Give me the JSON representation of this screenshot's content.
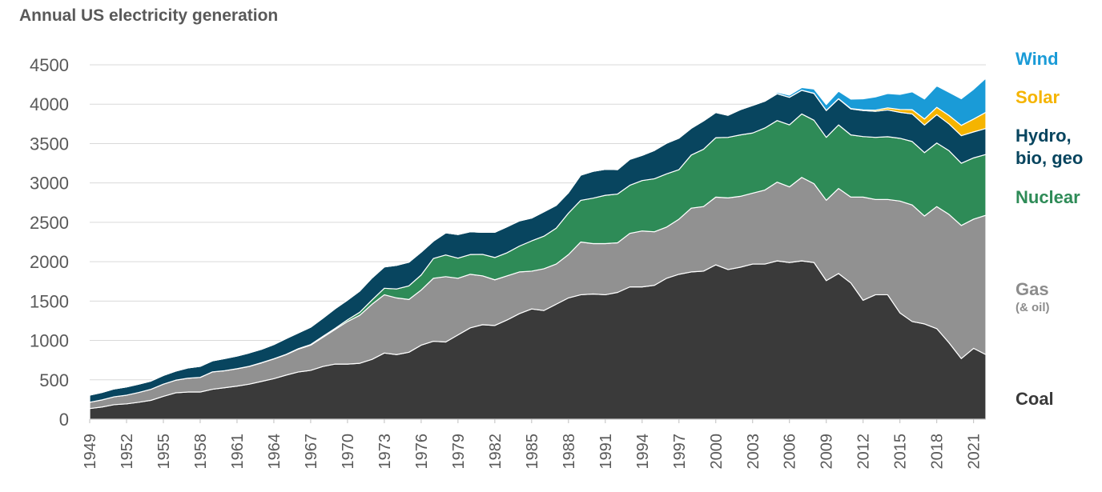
{
  "chart_data": {
    "type": "area",
    "stacked": true,
    "title": "Annual US electricity generation",
    "xlabel": "",
    "ylabel": "",
    "ylim": [
      0,
      4500
    ],
    "yticks": [
      0,
      500,
      1000,
      1500,
      2000,
      2500,
      3000,
      3500,
      4000,
      4500
    ],
    "xticks": [
      "1949",
      "1952",
      "1955",
      "1958",
      "1961",
      "1964",
      "1967",
      "1970",
      "1973",
      "1976",
      "1979",
      "1982",
      "1985",
      "1988",
      "1991",
      "1994",
      "1997",
      "2000",
      "2003",
      "2006",
      "2009",
      "2012",
      "2015",
      "2018",
      "2021"
    ],
    "grid": true,
    "legend_placement": "right",
    "x": [
      1949,
      1950,
      1951,
      1952,
      1953,
      1954,
      1955,
      1956,
      1957,
      1958,
      1959,
      1960,
      1961,
      1962,
      1963,
      1964,
      1965,
      1966,
      1967,
      1968,
      1969,
      1970,
      1971,
      1972,
      1973,
      1974,
      1975,
      1976,
      1977,
      1978,
      1979,
      1980,
      1981,
      1982,
      1983,
      1984,
      1985,
      1986,
      1987,
      1988,
      1989,
      1990,
      1991,
      1992,
      1993,
      1994,
      1995,
      1996,
      1997,
      1998,
      1999,
      2000,
      2001,
      2002,
      2003,
      2004,
      2005,
      2006,
      2007,
      2008,
      2009,
      2010,
      2011,
      2012,
      2013,
      2014,
      2015,
      2016,
      2017,
      2018,
      2019,
      2020,
      2021,
      2022
    ],
    "series": [
      {
        "key": "coal",
        "name": "Coal",
        "sub": "",
        "color": "#3a3a3a",
        "values": [
          135,
          155,
          185,
          195,
          215,
          240,
          290,
          335,
          345,
          345,
          380,
          400,
          420,
          445,
          480,
          515,
          560,
          600,
          620,
          670,
          700,
          700,
          710,
          760,
          840,
          820,
          850,
          940,
          990,
          980,
          1070,
          1160,
          1200,
          1190,
          1260,
          1340,
          1400,
          1380,
          1460,
          1540,
          1580,
          1590,
          1580,
          1610,
          1680,
          1680,
          1700,
          1790,
          1840,
          1870,
          1880,
          1960,
          1900,
          1930,
          1970,
          1970,
          2010,
          1990,
          2010,
          1990,
          1760,
          1850,
          1730,
          1510,
          1580,
          1580,
          1350,
          1240,
          1210,
          1150,
          970,
          770,
          900,
          820
        ]
      },
      {
        "key": "gas",
        "name": "Gas",
        "sub": "(& oil)",
        "color": "#919191",
        "values": [
          80,
          90,
          100,
          110,
          125,
          140,
          155,
          160,
          175,
          185,
          220,
          215,
          220,
          225,
          235,
          250,
          260,
          290,
          320,
          370,
          440,
          540,
          610,
          700,
          740,
          720,
          670,
          700,
          800,
          830,
          720,
          680,
          620,
          580,
          560,
          530,
          480,
          530,
          510,
          550,
          670,
          640,
          650,
          630,
          680,
          710,
          680,
          650,
          700,
          810,
          820,
          860,
          910,
          900,
          900,
          940,
          1000,
          960,
          1060,
          1000,
          1020,
          1080,
          1090,
          1310,
          1210,
          1210,
          1420,
          1480,
          1370,
          1550,
          1630,
          1690,
          1640,
          1770
        ]
      },
      {
        "key": "nuclear",
        "name": "Nuclear",
        "sub": "",
        "color": "#2e8b57",
        "values": [
          0,
          0,
          0,
          0,
          0,
          0,
          0,
          0,
          1,
          1,
          1,
          1,
          2,
          2,
          3,
          3,
          4,
          6,
          8,
          13,
          14,
          22,
          38,
          54,
          83,
          114,
          173,
          191,
          251,
          276,
          255,
          251,
          273,
          283,
          294,
          328,
          384,
          414,
          455,
          527,
          529,
          577,
          613,
          619,
          610,
          640,
          673,
          675,
          629,
          674,
          728,
          754,
          769,
          780,
          764,
          788,
          782,
          787,
          806,
          806,
          799,
          807,
          790,
          769,
          789,
          797,
          797,
          806,
          805,
          807,
          809,
          790,
          778,
          772
        ]
      },
      {
        "key": "hydro",
        "name": "Hydro, bio, geo",
        "sub": "",
        "color": "#08455f",
        "values": [
          90,
          95,
          100,
          105,
          105,
          105,
          110,
          115,
          130,
          140,
          140,
          155,
          160,
          170,
          170,
          180,
          200,
          200,
          220,
          230,
          250,
          250,
          270,
          280,
          270,
          300,
          300,
          290,
          220,
          280,
          300,
          290,
          280,
          320,
          330,
          320,
          290,
          310,
          290,
          260,
          320,
          340,
          330,
          310,
          330,
          320,
          360,
          390,
          400,
          340,
          360,
          320,
          280,
          320,
          350,
          340,
          340,
          350,
          300,
          340,
          340,
          330,
          330,
          330,
          330,
          340,
          330,
          350,
          350,
          360,
          340,
          350,
          330,
          330
        ]
      },
      {
        "key": "solar",
        "name": "Solar",
        "sub": "",
        "color": "#f5b400",
        "values": [
          0,
          0,
          0,
          0,
          0,
          0,
          0,
          0,
          0,
          0,
          0,
          0,
          0,
          0,
          0,
          0,
          0,
          0,
          0,
          0,
          0,
          0,
          0,
          0,
          0,
          0,
          0,
          0,
          0,
          0,
          0,
          0,
          0,
          0,
          0,
          0,
          0,
          0,
          0,
          0,
          0,
          0,
          0,
          0,
          0,
          0,
          0,
          0,
          0,
          0,
          0,
          0,
          0,
          0,
          0,
          0,
          1,
          1,
          1,
          2,
          2,
          3,
          4,
          9,
          15,
          26,
          36,
          54,
          77,
          93,
          107,
          131,
          163,
          205
        ]
      },
      {
        "key": "wind",
        "name": "Wind",
        "sub": "",
        "color": "#1a9bd7",
        "values": [
          0,
          0,
          0,
          0,
          0,
          0,
          0,
          0,
          0,
          0,
          0,
          0,
          0,
          0,
          0,
          0,
          0,
          0,
          0,
          0,
          0,
          0,
          0,
          0,
          0,
          0,
          0,
          0,
          0,
          0,
          0,
          0,
          0,
          0,
          0,
          0,
          0,
          0,
          0,
          0,
          0,
          0,
          0,
          0,
          0,
          0,
          0,
          0,
          0,
          0,
          0,
          0,
          0,
          0,
          0,
          0,
          18,
          27,
          34,
          55,
          74,
          95,
          120,
          140,
          168,
          182,
          191,
          227,
          254,
          273,
          295,
          338,
          378,
          434
        ]
      }
    ]
  }
}
